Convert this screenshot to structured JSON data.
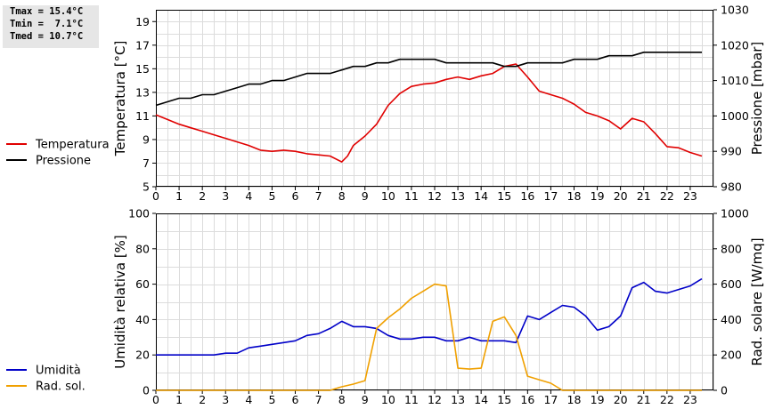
{
  "stats": {
    "tmax": "Tmax = 15.4°C",
    "tmin": "Tmin =  7.1°C",
    "tmed": "Tmed = 10.7°C"
  },
  "chart_data": [
    {
      "type": "line",
      "x_range": [
        0,
        24
      ],
      "x_ticks": [
        "0",
        "1",
        "2",
        "3",
        "4",
        "5",
        "6",
        "7",
        "8",
        "9",
        "10",
        "11",
        "12",
        "13",
        "14",
        "15",
        "16",
        "17",
        "18",
        "19",
        "20",
        "21",
        "22",
        "23"
      ],
      "ylabel_left": "Temperatura [°C]",
      "ylabel_right": "Pressione [mbar]",
      "ylim_left": [
        5,
        20
      ],
      "ylim_right": [
        980,
        1030
      ],
      "yticks_left": [
        5,
        7,
        9,
        11,
        13,
        15,
        17,
        19
      ],
      "yticks_right": [
        980,
        990,
        1000,
        1010,
        1020,
        1030
      ],
      "grid": true,
      "legend": [
        {
          "name": "Temperatura",
          "color": "#e00000"
        },
        {
          "name": "Pressione",
          "color": "#000000"
        }
      ],
      "series": [
        {
          "name": "Temperatura",
          "axis": "left",
          "color": "#e00000",
          "x": [
            0,
            0.5,
            1,
            1.5,
            2,
            2.5,
            3,
            3.5,
            4,
            4.5,
            5,
            5.5,
            6,
            6.5,
            7,
            7.5,
            8,
            8.25,
            8.5,
            9,
            9.5,
            10,
            10.5,
            11,
            11.5,
            12,
            12.5,
            13,
            13.5,
            14,
            14.5,
            15,
            15.5,
            16,
            16.5,
            17,
            17.5,
            18,
            18.5,
            19,
            19.5,
            20,
            20.5,
            21,
            21.5,
            22,
            22.5,
            23,
            23.5
          ],
          "values": [
            11.1,
            10.7,
            10.3,
            10.0,
            9.7,
            9.4,
            9.1,
            8.8,
            8.5,
            8.1,
            8.0,
            8.1,
            8.0,
            7.8,
            7.7,
            7.6,
            7.1,
            7.6,
            8.5,
            9.3,
            10.3,
            11.9,
            12.9,
            13.5,
            13.7,
            13.8,
            14.1,
            14.3,
            14.1,
            14.4,
            14.6,
            15.2,
            15.4,
            14.3,
            13.1,
            12.8,
            12.5,
            12.0,
            11.3,
            11.0,
            10.6,
            9.9,
            10.8,
            10.5,
            9.5,
            8.4,
            8.3,
            7.9,
            7.6
          ]
        },
        {
          "name": "Pressione",
          "axis": "right",
          "color": "#000000",
          "x": [
            0,
            0.5,
            1,
            1.5,
            2,
            2.5,
            3,
            3.5,
            4,
            4.5,
            5,
            5.5,
            6,
            6.5,
            7,
            7.5,
            8,
            8.5,
            9,
            9.5,
            10,
            10.5,
            11,
            11.5,
            12,
            12.5,
            13,
            13.5,
            14,
            14.5,
            15,
            15.5,
            16,
            16.5,
            17,
            17.5,
            18,
            18.5,
            19,
            19.5,
            20,
            20.5,
            21,
            21.5,
            22,
            22.5,
            23,
            23.5
          ],
          "values": [
            1003,
            1004,
            1005,
            1005,
            1006,
            1006,
            1007,
            1008,
            1009,
            1009,
            1010,
            1010,
            1011,
            1012,
            1012,
            1012,
            1013,
            1014,
            1014,
            1015,
            1015,
            1016,
            1016,
            1016,
            1016,
            1015,
            1015,
            1015,
            1015,
            1015,
            1014,
            1014,
            1015,
            1015,
            1015,
            1015,
            1016,
            1016,
            1016,
            1017,
            1017,
            1017,
            1018,
            1018,
            1018,
            1018,
            1018,
            1018
          ]
        }
      ]
    },
    {
      "type": "line",
      "x_range": [
        0,
        24
      ],
      "x_ticks": [
        "0",
        "1",
        "2",
        "3",
        "4",
        "5",
        "6",
        "7",
        "8",
        "9",
        "10",
        "11",
        "12",
        "13",
        "14",
        "15",
        "16",
        "17",
        "18",
        "19",
        "20",
        "21",
        "22",
        "23"
      ],
      "ylabel_left": "Umidità relativa [%]",
      "ylabel_right": "Rad. solare [W/mq]",
      "ylim_left": [
        0,
        100
      ],
      "ylim_right": [
        0,
        1000
      ],
      "yticks_left": [
        0,
        20,
        40,
        60,
        80,
        100
      ],
      "yticks_right": [
        0,
        200,
        400,
        600,
        800,
        1000
      ],
      "grid": true,
      "legend": [
        {
          "name": "Umidità",
          "color": "#0000c8"
        },
        {
          "name": "Rad. sol.",
          "color": "#f0a000"
        }
      ],
      "series": [
        {
          "name": "Umidità",
          "axis": "left",
          "color": "#0000c8",
          "x": [
            0,
            0.5,
            1,
            1.5,
            2,
            2.5,
            3,
            3.5,
            4,
            4.5,
            5,
            5.5,
            6,
            6.5,
            7,
            7.5,
            8,
            8.5,
            9,
            9.5,
            10,
            10.5,
            11,
            11.5,
            12,
            12.5,
            13,
            13.5,
            14,
            14.5,
            15,
            15.5,
            16,
            16.5,
            17,
            17.5,
            18,
            18.5,
            19,
            19.5,
            20,
            20.5,
            21,
            21.5,
            22,
            22.5,
            23,
            23.5
          ],
          "values": [
            20,
            20,
            20,
            20,
            20,
            20,
            21,
            21,
            24,
            25,
            26,
            27,
            28,
            31,
            32,
            35,
            39,
            36,
            36,
            35,
            31,
            29,
            29,
            30,
            30,
            28,
            28,
            30,
            28,
            28,
            28,
            27,
            42,
            40,
            44,
            48,
            47,
            42,
            34,
            36,
            42,
            58,
            61,
            56,
            55,
            57,
            59,
            63
          ]
        },
        {
          "name": "Rad. sol.",
          "axis": "right",
          "color": "#f0a000",
          "x": [
            0,
            1,
            2,
            3,
            4,
            5,
            6,
            7,
            7.5,
            8,
            8.5,
            9,
            9.5,
            10,
            10.5,
            11,
            11.5,
            12,
            12.5,
            13,
            13.5,
            14,
            14.5,
            15,
            15.5,
            16,
            16.5,
            17,
            17.5,
            18,
            19,
            20,
            21,
            22,
            23,
            23.5
          ],
          "values": [
            0,
            0,
            0,
            0,
            0,
            0,
            0,
            0,
            0,
            20,
            35,
            55,
            350,
            410,
            460,
            520,
            560,
            600,
            590,
            125,
            120,
            125,
            390,
            415,
            310,
            80,
            60,
            40,
            0,
            0,
            0,
            0,
            0,
            0,
            0,
            0
          ]
        }
      ]
    }
  ]
}
